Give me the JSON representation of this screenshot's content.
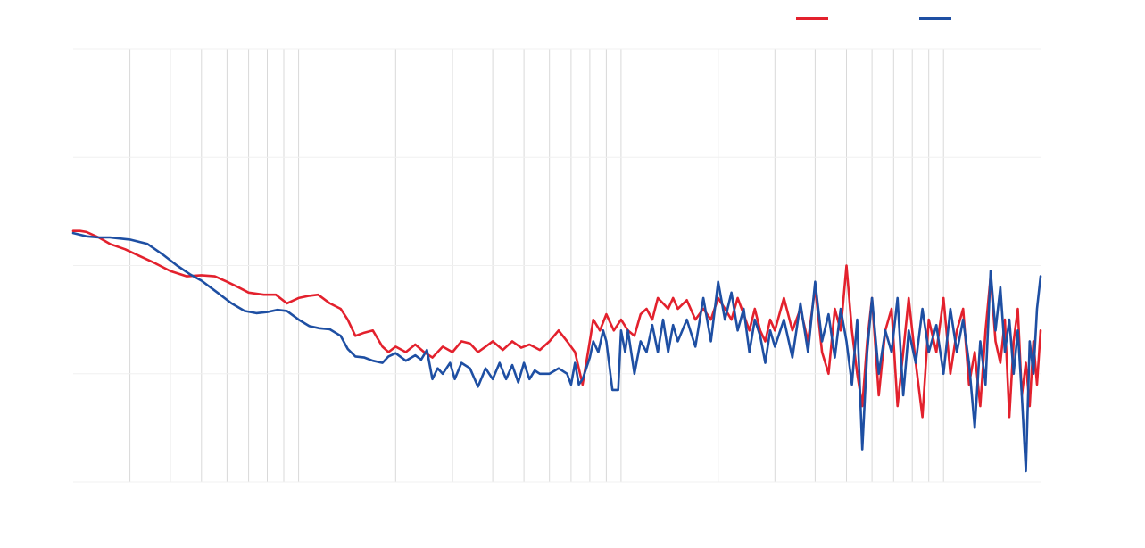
{
  "chart_data": {
    "type": "line",
    "title": "",
    "xlabel": "",
    "ylabel": "",
    "x_scale": "log",
    "xlim": [
      20,
      20000
    ],
    "ylim": [
      60,
      100
    ],
    "grid": {
      "vertical": true,
      "horizontal": true
    },
    "legend_placement": "top-right",
    "series": [
      {
        "name": "",
        "color": "#e3212d",
        "points": [
          [
            20,
            83.2
          ],
          [
            21,
            83.2
          ],
          [
            22,
            83.1
          ],
          [
            24,
            82.6
          ],
          [
            26,
            82.0
          ],
          [
            29,
            81.5
          ],
          [
            32,
            80.9
          ],
          [
            36,
            80.2
          ],
          [
            40,
            79.5
          ],
          [
            45,
            79.0
          ],
          [
            50,
            79.1
          ],
          [
            55,
            79.0
          ],
          [
            60,
            78.5
          ],
          [
            65,
            78.0
          ],
          [
            70,
            77.5
          ],
          [
            78,
            77.3
          ],
          [
            85,
            77.3
          ],
          [
            92,
            76.5
          ],
          [
            100,
            77.0
          ],
          [
            108,
            77.2
          ],
          [
            115,
            77.3
          ],
          [
            125,
            76.5
          ],
          [
            135,
            76.0
          ],
          [
            142,
            75.0
          ],
          [
            150,
            73.5
          ],
          [
            160,
            73.8
          ],
          [
            170,
            74.0
          ],
          [
            182,
            72.5
          ],
          [
            190,
            72.0
          ],
          [
            200,
            72.5
          ],
          [
            215,
            72.0
          ],
          [
            230,
            72.7
          ],
          [
            245,
            72.0
          ],
          [
            260,
            71.5
          ],
          [
            280,
            72.5
          ],
          [
            300,
            72.0
          ],
          [
            320,
            73.0
          ],
          [
            340,
            72.8
          ],
          [
            360,
            72.0
          ],
          [
            380,
            72.5
          ],
          [
            400,
            73.0
          ],
          [
            430,
            72.2
          ],
          [
            460,
            73.0
          ],
          [
            490,
            72.4
          ],
          [
            520,
            72.7
          ],
          [
            560,
            72.2
          ],
          [
            600,
            73.0
          ],
          [
            640,
            74.0
          ],
          [
            680,
            73.0
          ],
          [
            720,
            72.0
          ],
          [
            760,
            69.0
          ],
          [
            790,
            72.0
          ],
          [
            820,
            75.0
          ],
          [
            860,
            74.0
          ],
          [
            900,
            75.5
          ],
          [
            950,
            74.0
          ],
          [
            1000,
            75.0
          ],
          [
            1050,
            74.0
          ],
          [
            1100,
            73.5
          ],
          [
            1150,
            75.5
          ],
          [
            1200,
            76.0
          ],
          [
            1250,
            75.0
          ],
          [
            1300,
            77.0
          ],
          [
            1350,
            76.5
          ],
          [
            1400,
            76.0
          ],
          [
            1450,
            77.0
          ],
          [
            1500,
            76.0
          ],
          [
            1600,
            76.8
          ],
          [
            1700,
            75.0
          ],
          [
            1800,
            76.0
          ],
          [
            1900,
            75.0
          ],
          [
            2000,
            77.0
          ],
          [
            2100,
            76.0
          ],
          [
            2200,
            75.0
          ],
          [
            2300,
            77.0
          ],
          [
            2400,
            75.5
          ],
          [
            2500,
            74.0
          ],
          [
            2600,
            76.0
          ],
          [
            2700,
            74.0
          ],
          [
            2800,
            73.0
          ],
          [
            2900,
            75.0
          ],
          [
            3000,
            74.0
          ],
          [
            3200,
            77.0
          ],
          [
            3400,
            74.0
          ],
          [
            3600,
            76.0
          ],
          [
            3800,
            73.0
          ],
          [
            4000,
            78.0
          ],
          [
            4200,
            72.0
          ],
          [
            4400,
            70.0
          ],
          [
            4600,
            76.0
          ],
          [
            4800,
            74.0
          ],
          [
            5000,
            80.0
          ],
          [
            5200,
            74.0
          ],
          [
            5400,
            70.0
          ],
          [
            5600,
            67.0
          ],
          [
            5800,
            73.0
          ],
          [
            6000,
            77.0
          ],
          [
            6300,
            68.0
          ],
          [
            6600,
            74.0
          ],
          [
            6900,
            76.0
          ],
          [
            7200,
            67.0
          ],
          [
            7500,
            72.0
          ],
          [
            7800,
            77.0
          ],
          [
            8200,
            71.0
          ],
          [
            8600,
            66.0
          ],
          [
            9000,
            75.0
          ],
          [
            9500,
            72.0
          ],
          [
            10000,
            77.0
          ],
          [
            10500,
            70.0
          ],
          [
            11000,
            74.0
          ],
          [
            11500,
            76.0
          ],
          [
            12000,
            69.0
          ],
          [
            12500,
            72.0
          ],
          [
            13000,
            67.0
          ],
          [
            13500,
            74.0
          ],
          [
            14000,
            79.0
          ],
          [
            14500,
            73.0
          ],
          [
            15000,
            71.0
          ],
          [
            15500,
            75.0
          ],
          [
            16000,
            66.0
          ],
          [
            16500,
            73.0
          ],
          [
            17000,
            76.0
          ],
          [
            17500,
            68.0
          ],
          [
            18000,
            71.0
          ],
          [
            18500,
            67.0
          ],
          [
            19000,
            73.0
          ],
          [
            19500,
            69.0
          ],
          [
            20000,
            74.0
          ]
        ]
      },
      {
        "name": "",
        "color": "#1e4fa3",
        "points": [
          [
            20,
            83.0
          ],
          [
            22,
            82.7
          ],
          [
            24,
            82.6
          ],
          [
            26,
            82.6
          ],
          [
            30,
            82.4
          ],
          [
            34,
            82.0
          ],
          [
            38,
            81.0
          ],
          [
            42,
            80.0
          ],
          [
            46,
            79.2
          ],
          [
            50,
            78.6
          ],
          [
            56,
            77.5
          ],
          [
            62,
            76.5
          ],
          [
            68,
            75.8
          ],
          [
            74,
            75.6
          ],
          [
            80,
            75.7
          ],
          [
            86,
            75.9
          ],
          [
            92,
            75.8
          ],
          [
            100,
            75.0
          ],
          [
            108,
            74.4
          ],
          [
            116,
            74.2
          ],
          [
            125,
            74.1
          ],
          [
            135,
            73.5
          ],
          [
            142,
            72.3
          ],
          [
            150,
            71.6
          ],
          [
            160,
            71.5
          ],
          [
            170,
            71.2
          ],
          [
            182,
            71.0
          ],
          [
            190,
            71.6
          ],
          [
            200,
            71.9
          ],
          [
            215,
            71.2
          ],
          [
            230,
            71.7
          ],
          [
            240,
            71.3
          ],
          [
            250,
            72.2
          ],
          [
            260,
            69.5
          ],
          [
            270,
            70.5
          ],
          [
            280,
            70.0
          ],
          [
            295,
            71.0
          ],
          [
            305,
            69.5
          ],
          [
            320,
            71.0
          ],
          [
            340,
            70.5
          ],
          [
            360,
            68.8
          ],
          [
            380,
            70.5
          ],
          [
            400,
            69.5
          ],
          [
            420,
            71.0
          ],
          [
            440,
            69.5
          ],
          [
            460,
            70.8
          ],
          [
            480,
            69.2
          ],
          [
            500,
            71.0
          ],
          [
            520,
            69.5
          ],
          [
            540,
            70.3
          ],
          [
            560,
            70.0
          ],
          [
            600,
            70.0
          ],
          [
            640,
            70.5
          ],
          [
            680,
            70.0
          ],
          [
            700,
            69.0
          ],
          [
            720,
            71.0
          ],
          [
            740,
            69.0
          ],
          [
            760,
            69.5
          ],
          [
            780,
            70.5
          ],
          [
            800,
            71.5
          ],
          [
            820,
            73.0
          ],
          [
            850,
            72.0
          ],
          [
            880,
            74.0
          ],
          [
            900,
            73.0
          ],
          [
            940,
            68.5
          ],
          [
            980,
            68.5
          ],
          [
            1000,
            74.0
          ],
          [
            1030,
            72.0
          ],
          [
            1050,
            74.0
          ],
          [
            1100,
            70.0
          ],
          [
            1150,
            73.0
          ],
          [
            1200,
            72.0
          ],
          [
            1250,
            74.5
          ],
          [
            1300,
            72.0
          ],
          [
            1350,
            75.0
          ],
          [
            1400,
            72.0
          ],
          [
            1450,
            74.5
          ],
          [
            1500,
            73.0
          ],
          [
            1600,
            75.0
          ],
          [
            1700,
            72.5
          ],
          [
            1800,
            77.0
          ],
          [
            1900,
            73.0
          ],
          [
            2000,
            78.5
          ],
          [
            2100,
            75.0
          ],
          [
            2200,
            77.5
          ],
          [
            2300,
            74.0
          ],
          [
            2400,
            76.0
          ],
          [
            2500,
            72.0
          ],
          [
            2600,
            75.0
          ],
          [
            2700,
            73.5
          ],
          [
            2800,
            71.0
          ],
          [
            2900,
            74.0
          ],
          [
            3000,
            72.5
          ],
          [
            3200,
            75.0
          ],
          [
            3400,
            71.5
          ],
          [
            3600,
            76.5
          ],
          [
            3800,
            72.0
          ],
          [
            4000,
            78.5
          ],
          [
            4200,
            73.0
          ],
          [
            4400,
            75.5
          ],
          [
            4600,
            71.5
          ],
          [
            4800,
            76.0
          ],
          [
            5000,
            73.0
          ],
          [
            5200,
            69.0
          ],
          [
            5400,
            75.0
          ],
          [
            5600,
            63.0
          ],
          [
            5800,
            72.0
          ],
          [
            6000,
            77.0
          ],
          [
            6300,
            70.0
          ],
          [
            6600,
            74.0
          ],
          [
            6900,
            72.0
          ],
          [
            7200,
            77.0
          ],
          [
            7500,
            68.0
          ],
          [
            7800,
            74.0
          ],
          [
            8200,
            71.0
          ],
          [
            8600,
            76.0
          ],
          [
            9000,
            72.0
          ],
          [
            9500,
            74.5
          ],
          [
            10000,
            70.0
          ],
          [
            10500,
            76.0
          ],
          [
            11000,
            72.0
          ],
          [
            11500,
            75.0
          ],
          [
            12000,
            71.0
          ],
          [
            12500,
            65.0
          ],
          [
            13000,
            73.0
          ],
          [
            13500,
            69.0
          ],
          [
            14000,
            79.5
          ],
          [
            14500,
            74.0
          ],
          [
            15000,
            78.0
          ],
          [
            15500,
            72.0
          ],
          [
            16000,
            75.0
          ],
          [
            16500,
            70.0
          ],
          [
            17000,
            74.0
          ],
          [
            17500,
            68.0
          ],
          [
            18000,
            61.0
          ],
          [
            18500,
            73.0
          ],
          [
            19000,
            70.0
          ],
          [
            19500,
            76.0
          ],
          [
            20000,
            79.0
          ]
        ]
      }
    ]
  }
}
